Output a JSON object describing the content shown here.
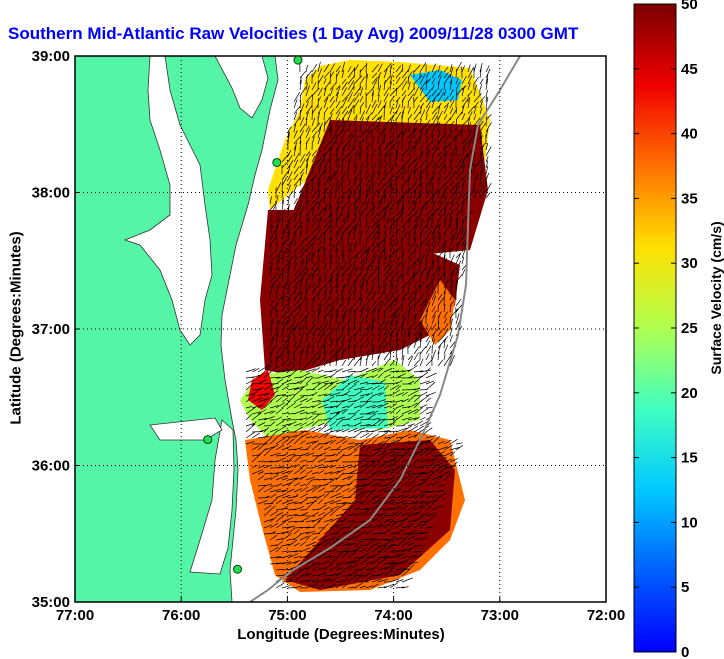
{
  "title": "Southern Mid-Atlantic Raw Velocities (1 Day Avg) 2009/11/28 0300 GMT",
  "map": {
    "xlabel": "Longitude (Degrees:Minutes)",
    "ylabel": "Latitude (Degrees:Minutes)",
    "lon_range": [
      -77,
      -72
    ],
    "lat_range": [
      35,
      39
    ],
    "lon_ticks": [
      -77,
      -76,
      -75,
      -74,
      -73,
      -72
    ],
    "lon_tick_labels": [
      "77:00",
      "76:00",
      "75:00",
      "74:00",
      "73:00",
      "72:00"
    ],
    "lat_ticks": [
      35,
      36,
      37,
      38,
      39
    ],
    "lat_tick_labels": [
      "35:00",
      "36:00",
      "37:00",
      "38:00",
      "39:00"
    ],
    "grid": "dotted",
    "land_color": "#55f5a8",
    "stations": [
      {
        "lon": -74.9,
        "lat": 38.97
      },
      {
        "lon": -75.1,
        "lat": 38.22
      },
      {
        "lon": -75.75,
        "lat": 36.19
      },
      {
        "lon": -75.47,
        "lat": 35.24
      }
    ]
  },
  "colorbar": {
    "label": "Surface Velocity (cm/s)",
    "min": 0,
    "max": 50,
    "ticks": [
      0,
      5,
      10,
      15,
      20,
      25,
      30,
      35,
      40,
      45,
      50
    ],
    "colormap": "jet"
  }
}
